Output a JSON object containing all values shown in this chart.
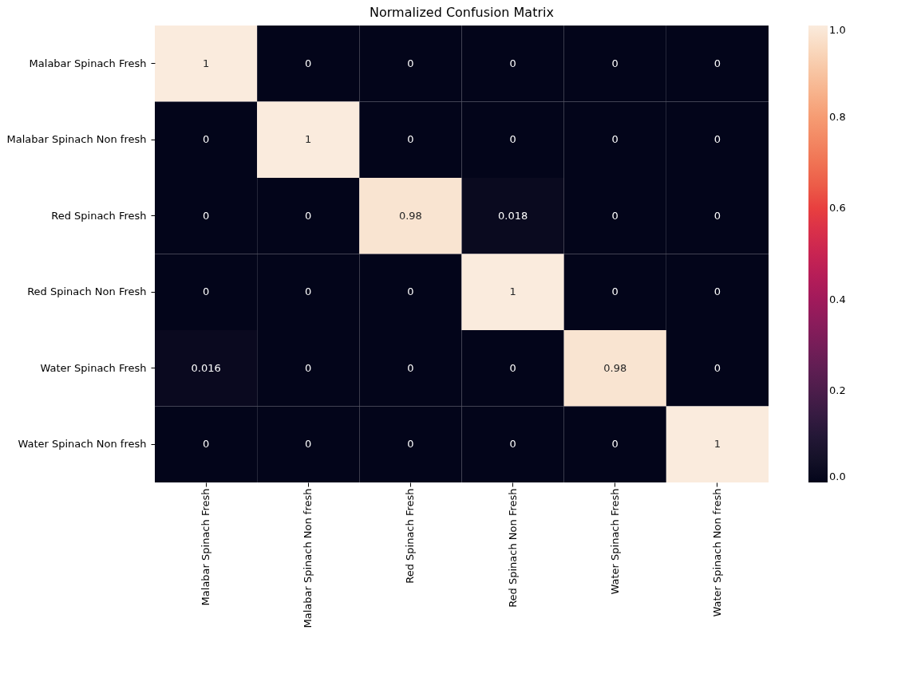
{
  "chart_data": {
    "type": "heatmap",
    "title": "Normalized Confusion Matrix",
    "categories": [
      "Malabar Spinach Fresh",
      "Malabar Spinach Non fresh",
      "Red Spinach Fresh",
      "Red Spinach Non Fresh",
      "Water Spinach Fresh",
      "Water Spinach Non fresh"
    ],
    "y_categories": [
      "Malabar Spinach Fresh",
      "Malabar Spinach Non fresh",
      "Red Spinach Fresh",
      "Red Spinach Non Fresh",
      "Water Spinach Fresh",
      "Water Spinach Non fresh"
    ],
    "cells": [
      [
        1,
        0,
        0,
        0,
        0,
        0
      ],
      [
        0,
        1,
        0,
        0,
        0,
        0
      ],
      [
        0,
        0,
        0.98,
        0.018,
        0,
        0
      ],
      [
        0,
        0,
        0,
        1,
        0,
        0
      ],
      [
        0.016,
        0,
        0,
        0,
        0.98,
        0
      ],
      [
        0,
        0,
        0,
        0,
        0,
        1
      ]
    ],
    "data_labels": true,
    "clim": [
      0,
      1
    ],
    "cticks": [
      {
        "value": 0,
        "label": "0.0"
      },
      {
        "value": 0.2,
        "label": "0.2"
      },
      {
        "value": 0.4,
        "label": "0.4"
      },
      {
        "value": 0.6,
        "label": "0.6"
      },
      {
        "value": 0.8,
        "label": "0.8"
      },
      {
        "value": 1,
        "label": "1.0"
      }
    ]
  }
}
